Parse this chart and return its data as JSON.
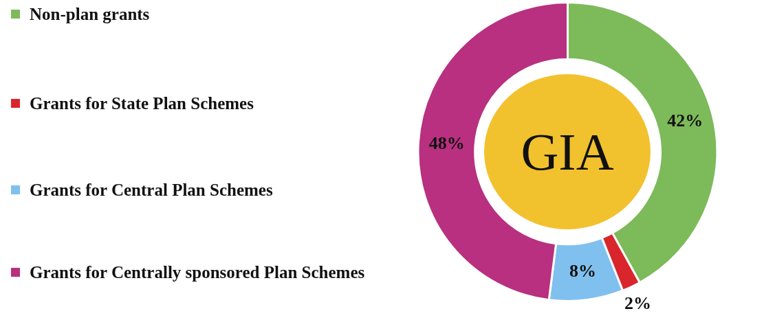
{
  "chart_data": {
    "type": "donut",
    "title": "GIA",
    "categories": [
      "Non-plan grants",
      "Grants for State Plan Schemes",
      "Grants for Central Plan Schemes",
      "Grants for Centrally sponsored Plan Schemes"
    ],
    "values": [
      42,
      2,
      8,
      48
    ],
    "colors": [
      "#7dba5a",
      "#d9262c",
      "#80c0ee",
      "#b8307f"
    ],
    "value_labels": [
      "42%",
      "2%",
      "8%",
      "48%"
    ],
    "legend": "left"
  }
}
